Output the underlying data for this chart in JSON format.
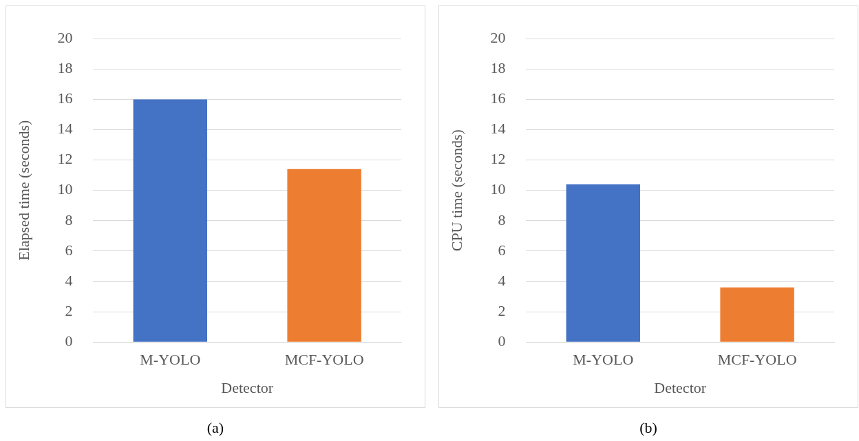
{
  "chart_data": [
    {
      "type": "bar",
      "xlabel": "Detector",
      "ylabel": "Elapsed time (seconds)",
      "categories": [
        "M-YOLO",
        "MCF-YOLO"
      ],
      "values": [
        16,
        11.4
      ],
      "colors": [
        "#4472c4",
        "#ed7d31"
      ],
      "ylim": [
        0,
        20
      ],
      "yticks": [
        0,
        2,
        4,
        6,
        8,
        10,
        12,
        14,
        16,
        18,
        20
      ],
      "grid": "y",
      "legend": false,
      "annotations": [
        "(a)"
      ]
    },
    {
      "type": "bar",
      "xlabel": "Detector",
      "ylabel": "CPU time (seconds)",
      "categories": [
        "M-YOLO",
        "MCF-YOLO"
      ],
      "values": [
        10.4,
        3.6
      ],
      "colors": [
        "#4472c4",
        "#ed7d31"
      ],
      "ylim": [
        0,
        20
      ],
      "yticks": [
        0,
        2,
        4,
        6,
        8,
        10,
        12,
        14,
        16,
        18,
        20
      ],
      "grid": "y",
      "legend": false,
      "annotations": [
        "(b)"
      ]
    }
  ]
}
